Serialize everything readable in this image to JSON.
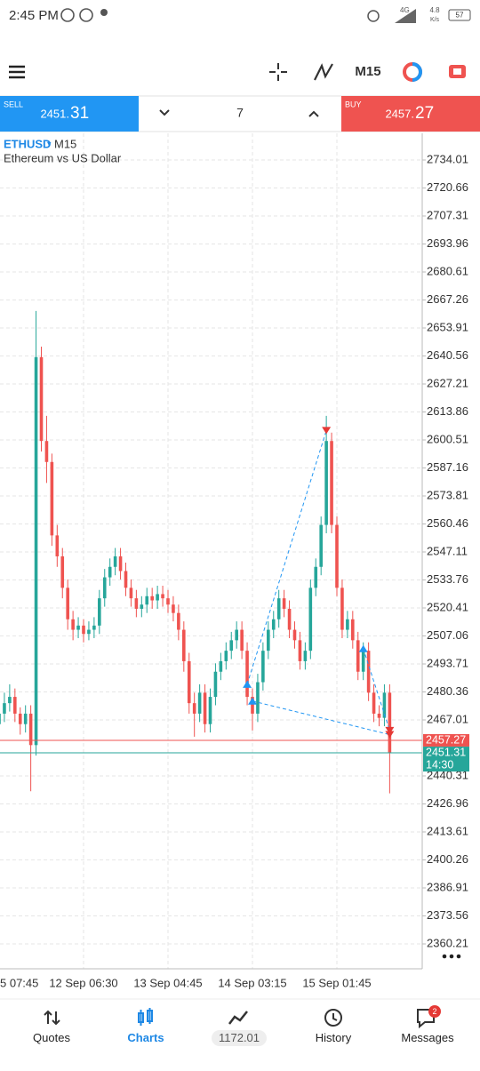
{
  "status_bar": {
    "time": "2:45 PM",
    "network": "4G",
    "speed": "4.8",
    "speed_unit": "K/s",
    "battery": "57"
  },
  "toolbar": {
    "timeframe": "M15"
  },
  "trade_bar": {
    "sell_label": "SELL",
    "sell_price_head": "2451.",
    "sell_price_tail": "31",
    "volume": "7",
    "buy_label": "BUY",
    "buy_price_head": "2457.",
    "buy_price_tail": "27"
  },
  "chart_data": {
    "type": "candlestick",
    "symbol": "ETHUSD",
    "symbol_marker": "▾",
    "timeframe": "M15",
    "subtitle": "Ethereum vs US Dollar",
    "categories": [
      "5 07:45",
      null,
      null,
      null,
      null,
      null,
      null,
      null,
      null,
      null,
      null,
      null,
      null,
      null,
      null,
      null,
      "12 Sep 06:30",
      null,
      null,
      null,
      null,
      null,
      null,
      null,
      null,
      null,
      null,
      null,
      null,
      null,
      null,
      null,
      "13 Sep 04:45",
      null,
      null,
      null,
      null,
      null,
      null,
      null,
      null,
      null,
      null,
      null,
      null,
      null,
      null,
      null,
      "14 Sep 03:15",
      null,
      null,
      null,
      null,
      null,
      null,
      null,
      null,
      null,
      null,
      null,
      null,
      null,
      null,
      null,
      "15 Sep 01:45",
      null,
      null,
      null,
      null,
      null,
      null,
      null,
      null,
      null,
      null
    ],
    "open": [
      2465,
      2470,
      2475,
      2478,
      2470,
      2465,
      2470,
      2455,
      2640,
      2600,
      2590,
      2555,
      2545,
      2530,
      2515,
      2510,
      2512,
      2508,
      2510,
      2512,
      2525,
      2535,
      2540,
      2545,
      2538,
      2530,
      2525,
      2520,
      2522,
      2526,
      2524,
      2527,
      2525,
      2522,
      2518,
      2510,
      2495,
      2475,
      2470,
      2480,
      2465,
      2478,
      2490,
      2495,
      2500,
      2505,
      2510,
      2500,
      2478,
      2470,
      2485,
      2500,
      2510,
      2515,
      2525,
      2520,
      2510,
      2505,
      2495,
      2500,
      2530,
      2540,
      2560,
      2600,
      2560,
      2530,
      2510,
      2515,
      2505,
      2490,
      2500,
      2480,
      2470,
      2468,
      2480
    ],
    "high": [
      2474,
      2480,
      2484,
      2482,
      2473,
      2474,
      2474,
      2662,
      2645,
      2612,
      2594,
      2560,
      2549,
      2534,
      2519,
      2516,
      2515,
      2514,
      2516,
      2529,
      2539,
      2544,
      2549,
      2549,
      2542,
      2534,
      2529,
      2526,
      2530,
      2530,
      2531,
      2531,
      2529,
      2526,
      2522,
      2514,
      2499,
      2480,
      2484,
      2484,
      2482,
      2494,
      2499,
      2504,
      2509,
      2514,
      2514,
      2504,
      2482,
      2489,
      2504,
      2514,
      2519,
      2529,
      2529,
      2524,
      2514,
      2509,
      2504,
      2534,
      2544,
      2564,
      2612,
      2604,
      2564,
      2534,
      2519,
      2519,
      2509,
      2504,
      2504,
      2484,
      2474,
      2484,
      2484
    ],
    "low": [
      2461,
      2466,
      2471,
      2466,
      2460,
      2461,
      2433,
      2450,
      2595,
      2580,
      2550,
      2540,
      2525,
      2510,
      2505,
      2506,
      2504,
      2505,
      2506,
      2508,
      2521,
      2531,
      2536,
      2534,
      2526,
      2521,
      2516,
      2516,
      2518,
      2520,
      2520,
      2521,
      2518,
      2514,
      2505,
      2490,
      2470,
      2459,
      2466,
      2461,
      2461,
      2474,
      2486,
      2491,
      2496,
      2501,
      2496,
      2474,
      2462,
      2466,
      2481,
      2496,
      2506,
      2511,
      2516,
      2506,
      2501,
      2491,
      2491,
      2496,
      2526,
      2536,
      2556,
      2556,
      2526,
      2506,
      2506,
      2501,
      2486,
      2486,
      2476,
      2466,
      2464,
      2464,
      2432
    ],
    "close": [
      2470,
      2475,
      2478,
      2470,
      2465,
      2470,
      2455,
      2640,
      2600,
      2590,
      2555,
      2545,
      2530,
      2515,
      2510,
      2512,
      2508,
      2510,
      2512,
      2525,
      2535,
      2540,
      2545,
      2538,
      2530,
      2525,
      2520,
      2522,
      2526,
      2524,
      2527,
      2525,
      2522,
      2518,
      2510,
      2495,
      2475,
      2470,
      2480,
      2465,
      2478,
      2490,
      2495,
      2500,
      2505,
      2510,
      2500,
      2478,
      2470,
      2485,
      2500,
      2510,
      2515,
      2525,
      2520,
      2510,
      2505,
      2495,
      2500,
      2530,
      2540,
      2560,
      2600,
      2560,
      2530,
      2510,
      2515,
      2505,
      2490,
      2500,
      2480,
      2470,
      2468,
      2480,
      2451.31
    ],
    "up_color": "#26a69a",
    "down_color": "#ef5350",
    "ylim": [
      2348.34,
      2746.72
    ],
    "yticks": [
      2734.01,
      2720.66,
      2707.31,
      2693.96,
      2680.61,
      2667.26,
      2653.91,
      2640.56,
      2627.21,
      2613.86,
      2600.51,
      2587.16,
      2573.81,
      2560.46,
      2547.11,
      2533.76,
      2520.41,
      2507.06,
      2493.71,
      2480.36,
      2467.01,
      2440.31,
      2426.96,
      2413.61,
      2400.26,
      2386.91,
      2373.56,
      2360.21
    ],
    "grid": true,
    "ask": 2457.27,
    "ask_color": "#ef5350",
    "bid": 2451.31,
    "bid_color": "#26a69a",
    "bar_timer": "14:30",
    "trades": [
      {
        "open_index": 47,
        "open_price": 2484,
        "close_index": 62,
        "close_price": 2605
      },
      {
        "open_index": 48,
        "open_price": 2476,
        "close_index": 74,
        "close_price": 2460
      },
      {
        "open_index": 69,
        "open_price": 2501,
        "close_index": 74,
        "close_price": 2462
      }
    ],
    "trade_open_color": "#2196f3",
    "trade_close_color": "#e53935"
  },
  "bottom_nav": {
    "items": [
      "Quotes",
      "Charts",
      "History",
      "Messages"
    ],
    "balance": "1172.01",
    "badge": "2"
  }
}
